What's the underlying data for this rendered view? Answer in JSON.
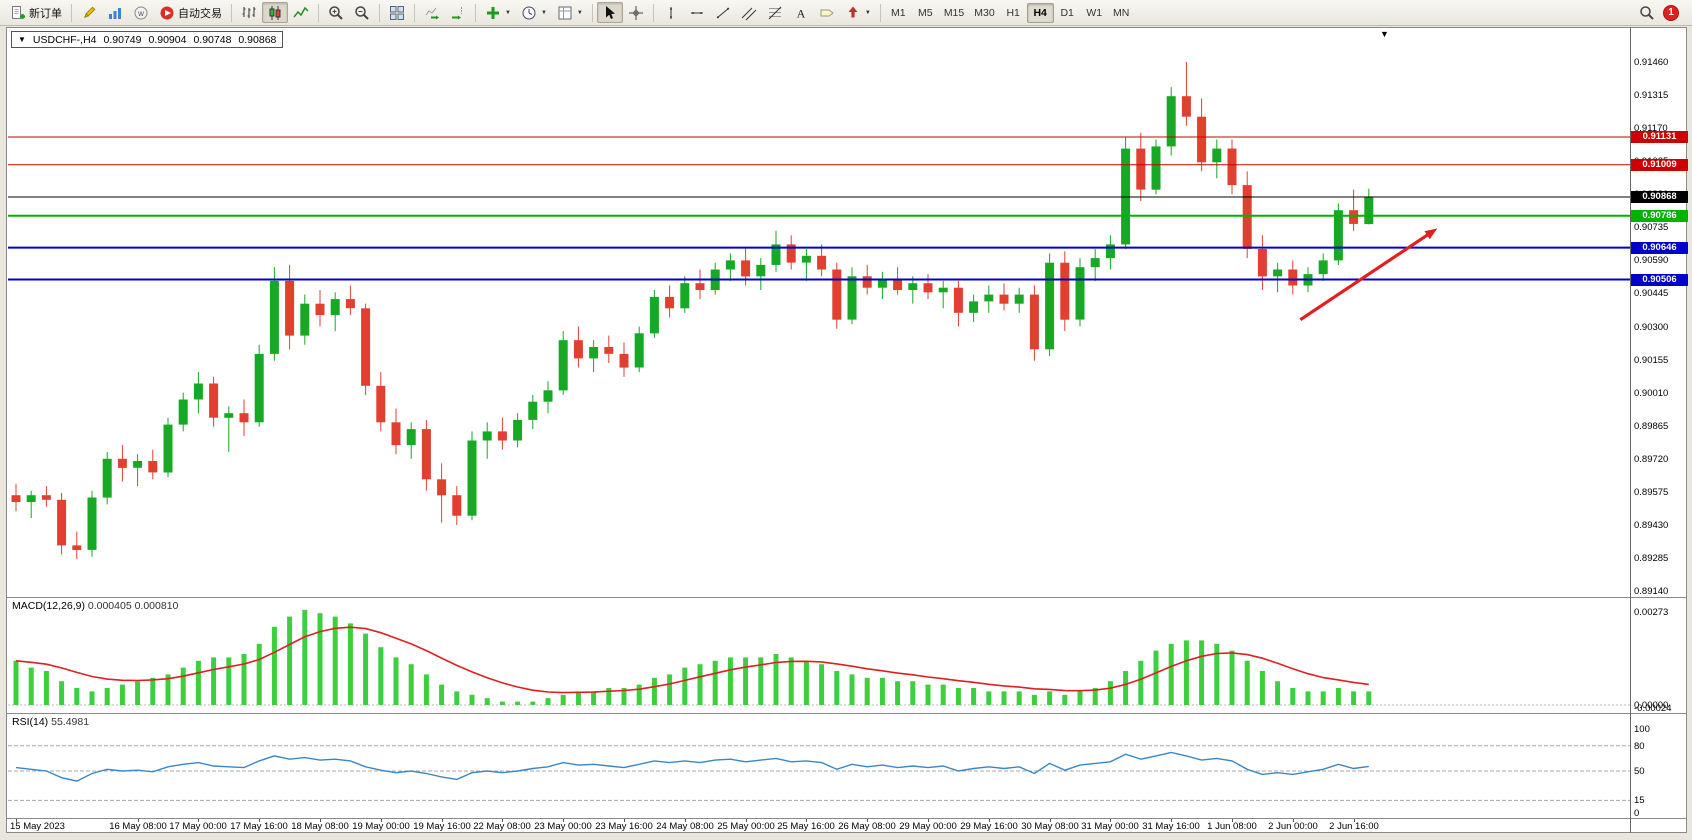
{
  "toolbar": {
    "groups": [
      [
        {
          "name": "new-order",
          "icon": "doc-plus",
          "label": "新订单"
        }
      ],
      [
        {
          "name": "metaeditor",
          "icon": "pencil"
        },
        {
          "name": "market",
          "icon": "market"
        },
        {
          "name": "community",
          "icon": "community"
        },
        {
          "name": "autotrade",
          "icon": "autotrade",
          "label": "自动交易"
        }
      ],
      [
        {
          "name": "bar-chart",
          "icon": "bars"
        },
        {
          "name": "candlestick-chart",
          "icon": "candles",
          "active": true
        },
        {
          "name": "line-chart",
          "icon": "linechart"
        }
      ],
      [
        {
          "name": "zoom-in",
          "icon": "zoom-in"
        },
        {
          "name": "zoom-out",
          "icon": "zoom-out"
        }
      ],
      [
        {
          "name": "tile-windows",
          "icon": "tile"
        }
      ],
      [
        {
          "name": "auto-scroll",
          "icon": "autoscroll"
        },
        {
          "name": "chart-shift",
          "icon": "chartshift"
        }
      ],
      [
        {
          "name": "indicators",
          "icon": "indicators",
          "dropdown": true
        },
        {
          "name": "periods",
          "icon": "periods",
          "dropdown": true
        },
        {
          "name": "templates",
          "icon": "templates",
          "dropdown": true
        }
      ],
      [
        {
          "name": "cursor",
          "icon": "cursor",
          "active": true
        },
        {
          "name": "crosshair",
          "icon": "crosshair"
        }
      ],
      [
        {
          "name": "vertical-line",
          "icon": "vline"
        },
        {
          "name": "horizontal-line",
          "icon": "hline"
        },
        {
          "name": "trendline",
          "icon": "trendline"
        },
        {
          "name": "equidistant-channel",
          "icon": "channel"
        },
        {
          "name": "fibonacci",
          "icon": "fibo"
        },
        {
          "name": "text",
          "icon": "text"
        },
        {
          "name": "text-label",
          "icon": "label"
        },
        {
          "name": "arrows",
          "icon": "arrows",
          "dropdown": true
        }
      ]
    ],
    "timeframes": [
      "M1",
      "M5",
      "M15",
      "M30",
      "H1",
      "H4",
      "D1",
      "W1",
      "MN"
    ],
    "active_timeframe": "H4",
    "notification_count": "1"
  },
  "chart": {
    "title": "USDCHF-,H4",
    "symbol": "USDCHF-",
    "period": "H4",
    "ohlc": {
      "open": "0.90749",
      "high": "0.90904",
      "low": "0.90748",
      "close": "0.90868"
    },
    "levels": [
      {
        "price": 0.91131,
        "label": "0.91131",
        "color": "#cc0000",
        "width": 1,
        "type": "resistance-line"
      },
      {
        "price": 0.91009,
        "label": "0.91009",
        "color": "#cc0000",
        "width": 1,
        "type": "resistance-line"
      },
      {
        "price": 0.90868,
        "label": "0.90868",
        "color": "#000000",
        "width": 1,
        "type": "current-price-line"
      },
      {
        "price": 0.90786,
        "label": "0.90786",
        "color": "#00b300",
        "width": 2,
        "type": "support-line"
      },
      {
        "price": 0.90646,
        "label": "0.90646",
        "color": "#0000cc",
        "width": 2,
        "type": "support-line"
      },
      {
        "price": 0.90506,
        "label": "0.90506",
        "color": "#0000cc",
        "width": 2,
        "type": "support-line"
      }
    ],
    "price_axis": {
      "min": 0.8912,
      "max": 0.916,
      "tick_labels": [
        "0.91460",
        "0.91315",
        "0.91170",
        "0.91025",
        "0.90880",
        "0.90735",
        "0.90590",
        "0.90445",
        "0.90300",
        "0.90155",
        "0.90010",
        "0.89865",
        "0.89720",
        "0.89575",
        "0.89430",
        "0.89285",
        "0.89140"
      ]
    }
  },
  "macd_panel": {
    "label": "MACD(12,26,9)",
    "values": "0.000405 0.000810",
    "axis": [
      "0.00273",
      "0.00000",
      "-0.00024"
    ]
  },
  "rsi_panel": {
    "label": "RSI(14)",
    "value": "55.4981",
    "axis": [
      "100",
      "80",
      "50",
      "15",
      "0"
    ],
    "levels": [
      80,
      50,
      15
    ]
  },
  "time_axis": {
    "labels": [
      {
        "text": "15 May 2023",
        "candle": 0
      },
      {
        "text": "16 May 08:00",
        "candle": 8
      },
      {
        "text": "17 May 00:00",
        "candle": 12
      },
      {
        "text": "17 May 16:00",
        "candle": 16
      },
      {
        "text": "18 May 08:00",
        "candle": 20
      },
      {
        "text": "19 May 00:00",
        "candle": 24
      },
      {
        "text": "19 May 16:00",
        "candle": 28
      },
      {
        "text": "22 May 08:00",
        "candle": 32
      },
      {
        "text": "23 May 00:00",
        "candle": 36
      },
      {
        "text": "23 May 16:00",
        "candle": 40
      },
      {
        "text": "24 May 08:00",
        "candle": 44
      },
      {
        "text": "25 May 00:00",
        "candle": 48
      },
      {
        "text": "25 May 16:00",
        "candle": 52
      },
      {
        "text": "26 May 08:00",
        "candle": 56
      },
      {
        "text": "29 May 00:00",
        "candle": 60
      },
      {
        "text": "29 May 16:00",
        "candle": 64
      },
      {
        "text": "30 May 08:00",
        "candle": 68
      },
      {
        "text": "31 May 00:00",
        "candle": 72
      },
      {
        "text": "31 May 16:00",
        "candle": 76
      },
      {
        "text": "1 Jun 08:00",
        "candle": 80
      },
      {
        "text": "2 Jun 00:00",
        "candle": 84
      },
      {
        "text": "2 Jun 16:00",
        "candle": 88
      }
    ]
  },
  "chart_data": {
    "type": "candlestick",
    "symbol": "USDCHF-",
    "timeframe": "H4",
    "bull_color": "#17a825",
    "bear_color": "#df4030",
    "macd_bar_color": "#3ecf3e",
    "macd_signal_color": "#e02020",
    "rsi_line_color": "#3a87c8",
    "candles": [
      [
        0.8956,
        0.8961,
        0.8949,
        0.8953
      ],
      [
        0.8953,
        0.8958,
        0.8946,
        0.8956
      ],
      [
        0.8956,
        0.896,
        0.8951,
        0.8954
      ],
      [
        0.8954,
        0.8957,
        0.893,
        0.8934
      ],
      [
        0.8934,
        0.894,
        0.8928,
        0.8932
      ],
      [
        0.8932,
        0.8958,
        0.8929,
        0.8955
      ],
      [
        0.8955,
        0.8975,
        0.8952,
        0.8972
      ],
      [
        0.8972,
        0.8978,
        0.8962,
        0.8968
      ],
      [
        0.8968,
        0.8974,
        0.896,
        0.8971
      ],
      [
        0.8971,
        0.8976,
        0.8963,
        0.8966
      ],
      [
        0.8966,
        0.899,
        0.8964,
        0.8987
      ],
      [
        0.8987,
        0.9001,
        0.8984,
        0.8998
      ],
      [
        0.8998,
        0.901,
        0.8992,
        0.9005
      ],
      [
        0.9005,
        0.9008,
        0.8986,
        0.899
      ],
      [
        0.899,
        0.8995,
        0.8975,
        0.8992
      ],
      [
        0.8992,
        0.8998,
        0.8982,
        0.8988
      ],
      [
        0.8988,
        0.9022,
        0.8986,
        0.9018
      ],
      [
        0.9018,
        0.9056,
        0.9015,
        0.905
      ],
      [
        0.905,
        0.9057,
        0.902,
        0.9026
      ],
      [
        0.9026,
        0.9044,
        0.9022,
        0.904
      ],
      [
        0.904,
        0.9046,
        0.903,
        0.9035
      ],
      [
        0.9035,
        0.9045,
        0.9028,
        0.9042
      ],
      [
        0.9042,
        0.9048,
        0.9035,
        0.9038
      ],
      [
        0.9038,
        0.904,
        0.9,
        0.9004
      ],
      [
        0.9004,
        0.901,
        0.8984,
        0.8988
      ],
      [
        0.8988,
        0.8994,
        0.8974,
        0.8978
      ],
      [
        0.8978,
        0.8988,
        0.8972,
        0.8985
      ],
      [
        0.8985,
        0.8989,
        0.8958,
        0.8963
      ],
      [
        0.8963,
        0.897,
        0.8944,
        0.8956
      ],
      [
        0.8956,
        0.896,
        0.8943,
        0.8947
      ],
      [
        0.8947,
        0.8984,
        0.8945,
        0.898
      ],
      [
        0.898,
        0.8988,
        0.8972,
        0.8984
      ],
      [
        0.8984,
        0.899,
        0.8976,
        0.898
      ],
      [
        0.898,
        0.8992,
        0.8977,
        0.8989
      ],
      [
        0.8989,
        0.9,
        0.8985,
        0.8997
      ],
      [
        0.8997,
        0.9006,
        0.8992,
        0.9002
      ],
      [
        0.9002,
        0.9028,
        0.9,
        0.9024
      ],
      [
        0.9024,
        0.903,
        0.9012,
        0.9016
      ],
      [
        0.9016,
        0.9024,
        0.901,
        0.9021
      ],
      [
        0.9021,
        0.9026,
        0.9014,
        0.9018
      ],
      [
        0.9018,
        0.9023,
        0.9008,
        0.9012
      ],
      [
        0.9012,
        0.903,
        0.901,
        0.9027
      ],
      [
        0.9027,
        0.9046,
        0.9025,
        0.9043
      ],
      [
        0.9043,
        0.9048,
        0.9034,
        0.9038
      ],
      [
        0.9038,
        0.9052,
        0.9036,
        0.9049
      ],
      [
        0.9049,
        0.9055,
        0.9042,
        0.9046
      ],
      [
        0.9046,
        0.9058,
        0.9044,
        0.9055
      ],
      [
        0.9055,
        0.9062,
        0.905,
        0.9059
      ],
      [
        0.9059,
        0.9065,
        0.9048,
        0.9052
      ],
      [
        0.9052,
        0.906,
        0.9046,
        0.9057
      ],
      [
        0.9057,
        0.9072,
        0.9054,
        0.9066
      ],
      [
        0.9066,
        0.907,
        0.9055,
        0.9058
      ],
      [
        0.9058,
        0.9064,
        0.905,
        0.9061
      ],
      [
        0.9061,
        0.9066,
        0.9052,
        0.9055
      ],
      [
        0.9055,
        0.9058,
        0.9029,
        0.9033
      ],
      [
        0.9033,
        0.9056,
        0.9031,
        0.9052
      ],
      [
        0.9052,
        0.9057,
        0.9044,
        0.9047
      ],
      [
        0.9047,
        0.9054,
        0.9042,
        0.9051
      ],
      [
        0.9051,
        0.9056,
        0.9044,
        0.9046
      ],
      [
        0.9046,
        0.9052,
        0.904,
        0.9049
      ],
      [
        0.9049,
        0.9053,
        0.9042,
        0.9045
      ],
      [
        0.9045,
        0.905,
        0.9038,
        0.9047
      ],
      [
        0.9047,
        0.905,
        0.903,
        0.9036
      ],
      [
        0.9036,
        0.9044,
        0.9032,
        0.9041
      ],
      [
        0.9041,
        0.9048,
        0.9036,
        0.9044
      ],
      [
        0.9044,
        0.9049,
        0.9037,
        0.904
      ],
      [
        0.904,
        0.9047,
        0.9036,
        0.9044
      ],
      [
        0.9044,
        0.9048,
        0.9015,
        0.902
      ],
      [
        0.902,
        0.9062,
        0.9017,
        0.9058
      ],
      [
        0.9058,
        0.9063,
        0.9028,
        0.9033
      ],
      [
        0.9033,
        0.906,
        0.903,
        0.9056
      ],
      [
        0.9056,
        0.9064,
        0.905,
        0.906
      ],
      [
        0.906,
        0.907,
        0.9055,
        0.9066
      ],
      [
        0.9066,
        0.9113,
        0.9064,
        0.9108
      ],
      [
        0.9108,
        0.9115,
        0.9085,
        0.909
      ],
      [
        0.909,
        0.9112,
        0.9088,
        0.9109
      ],
      [
        0.9109,
        0.9135,
        0.9105,
        0.9131
      ],
      [
        0.9131,
        0.9146,
        0.9118,
        0.9122
      ],
      [
        0.9122,
        0.913,
        0.9098,
        0.9102
      ],
      [
        0.9102,
        0.9112,
        0.9095,
        0.9108
      ],
      [
        0.9108,
        0.9112,
        0.9088,
        0.9092
      ],
      [
        0.9092,
        0.9098,
        0.906,
        0.9064
      ],
      [
        0.9064,
        0.907,
        0.9046,
        0.9052
      ],
      [
        0.9052,
        0.9058,
        0.9045,
        0.9055
      ],
      [
        0.9055,
        0.9059,
        0.9044,
        0.9048
      ],
      [
        0.9048,
        0.9056,
        0.9045,
        0.9053
      ],
      [
        0.9053,
        0.9062,
        0.905,
        0.9059
      ],
      [
        0.9059,
        0.9084,
        0.9057,
        0.9081
      ],
      [
        0.9081,
        0.909,
        0.9072,
        0.9075
      ],
      [
        0.90749,
        0.90904,
        0.90748,
        0.90868
      ]
    ],
    "macd": [
      0.0013,
      0.0011,
      0.001,
      0.0007,
      0.0005,
      0.0004,
      0.0005,
      0.0006,
      0.0007,
      0.0008,
      0.0009,
      0.0011,
      0.0013,
      0.0014,
      0.0014,
      0.0015,
      0.0018,
      0.0023,
      0.0026,
      0.0028,
      0.0027,
      0.0026,
      0.0024,
      0.0021,
      0.0017,
      0.0014,
      0.0012,
      0.0009,
      0.0006,
      0.0004,
      0.0003,
      0.0002,
      0.0001,
      0.0001,
      0.0001,
      0.0002,
      0.0003,
      0.0004,
      0.0004,
      0.0005,
      0.0005,
      0.0006,
      0.0008,
      0.0009,
      0.0011,
      0.0012,
      0.0013,
      0.0014,
      0.0014,
      0.0014,
      0.0015,
      0.0014,
      0.0013,
      0.0012,
      0.001,
      0.0009,
      0.0008,
      0.0008,
      0.0007,
      0.0007,
      0.0006,
      0.0006,
      0.0005,
      0.0005,
      0.0004,
      0.0004,
      0.0004,
      0.0003,
      0.0004,
      0.0003,
      0.0004,
      0.0005,
      0.0007,
      0.001,
      0.0013,
      0.0016,
      0.0018,
      0.0019,
      0.0019,
      0.0018,
      0.0016,
      0.0013,
      0.001,
      0.0007,
      0.0005,
      0.0004,
      0.0004,
      0.0005,
      0.0004,
      0.0004
    ],
    "rsi": [
      54,
      52,
      50,
      42,
      38,
      47,
      52,
      50,
      51,
      49,
      55,
      58,
      60,
      56,
      55,
      54,
      62,
      68,
      64,
      66,
      63,
      64,
      62,
      55,
      51,
      48,
      50,
      47,
      43,
      40,
      48,
      50,
      48,
      50,
      53,
      55,
      60,
      57,
      58,
      56,
      54,
      58,
      62,
      60,
      62,
      60,
      63,
      64,
      61,
      63,
      65,
      61,
      62,
      60,
      52,
      58,
      55,
      57,
      54,
      56,
      54,
      56,
      50,
      53,
      55,
      53,
      55,
      47,
      59,
      51,
      57,
      59,
      61,
      70,
      64,
      68,
      72,
      68,
      63,
      65,
      62,
      52,
      46,
      48,
      46,
      49,
      52,
      58,
      53,
      55.5
    ],
    "annotations": [
      {
        "type": "arrow",
        "from": {
          "candle": 84.5,
          "price": 0.9033
        },
        "to": {
          "candle": 93.5,
          "price": 0.9073
        },
        "color": "#e01f1f"
      }
    ]
  }
}
